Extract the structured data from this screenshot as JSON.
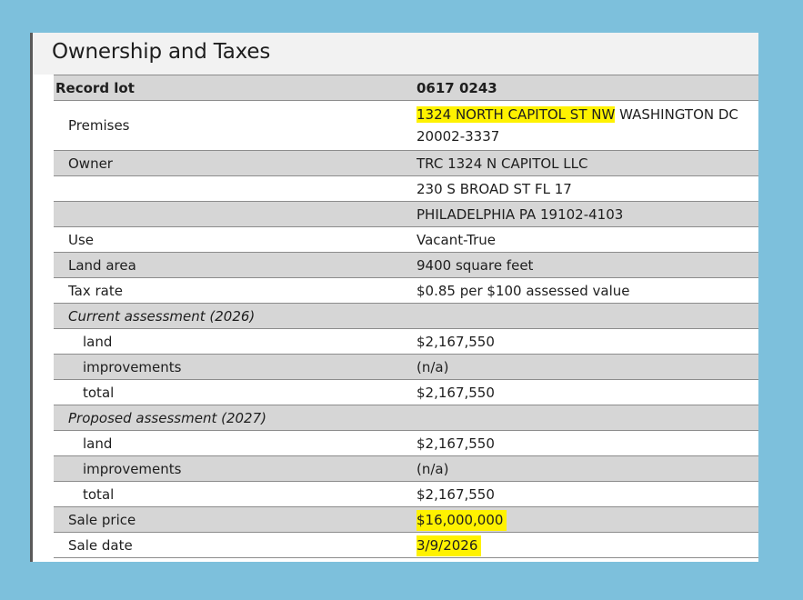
{
  "section": {
    "title": "Ownership and Taxes"
  },
  "record_lot": {
    "label": "Record lot",
    "value": "0617 0243"
  },
  "premises": {
    "label": "Premises",
    "address_highlighted": "1324 NORTH CAPITOL ST NW",
    "address_rest": " WASHINGTON DC 20002-3337"
  },
  "owner": {
    "label": "Owner",
    "name": "TRC 1324 N CAPITOL LLC",
    "address_line1": "230 S BROAD ST FL 17",
    "address_line2": "PHILADELPHIA PA 19102-4103"
  },
  "use": {
    "label": "Use",
    "value": "Vacant-True"
  },
  "land_area": {
    "label": "Land area",
    "value": "9400 square feet"
  },
  "tax_rate": {
    "label": "Tax rate",
    "value": "$0.85 per $100 assessed value"
  },
  "current_assessment": {
    "heading": "Current assessment (2026)",
    "land_label": "land",
    "land_value": "$2,167,550",
    "improvements_label": "improvements",
    "improvements_value": "(n/a)",
    "total_label": "total",
    "total_value": "$2,167,550"
  },
  "proposed_assessment": {
    "heading": "Proposed assessment (2027)",
    "land_label": "land",
    "land_value": "$2,167,550",
    "improvements_label": "improvements",
    "improvements_value": "(n/a)",
    "total_label": "total",
    "total_value": "$2,167,550"
  },
  "sale_price": {
    "label": "Sale price",
    "value": "$16,000,000"
  },
  "sale_date": {
    "label": "Sale date",
    "value": "3/9/2026"
  },
  "colors": {
    "page_background": "#7dc0dc",
    "row_shade": "#d6d6d6",
    "highlight": "#fff200"
  }
}
